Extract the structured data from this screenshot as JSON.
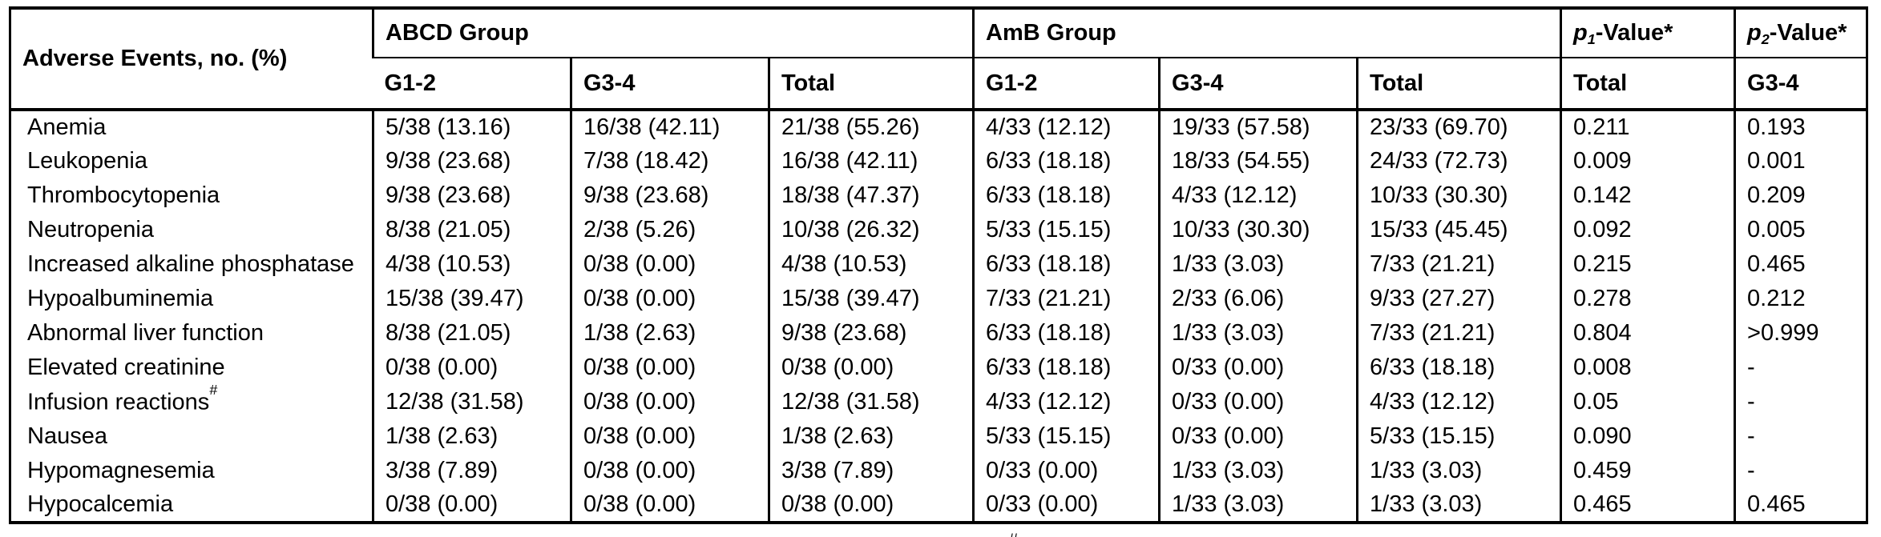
{
  "table": {
    "row_header_label": "Adverse Events, no. (%)",
    "group_headers": [
      "ABCD Group",
      "AmB Group"
    ],
    "p_headers": [
      {
        "p": "p",
        "sub": "1",
        "rest": "-Value*"
      },
      {
        "p": "p",
        "sub": "2",
        "rest": "-Value*"
      }
    ],
    "subheaders": [
      "G1-2",
      "G3-4",
      "Total",
      "G1-2",
      "G3-4",
      "Total",
      "Total",
      "G3-4"
    ],
    "rows": [
      {
        "event": "Anemia",
        "cells": [
          "5/38 (13.16)",
          "16/38 (42.11)",
          "21/38 (55.26)",
          "4/33 (12.12)",
          "19/33 (57.58)",
          "23/33 (69.70)",
          "0.211",
          "0.193"
        ]
      },
      {
        "event": "Leukopenia",
        "cells": [
          "9/38 (23.68)",
          "7/38 (18.42)",
          "16/38 (42.11)",
          "6/33 (18.18)",
          "18/33 (54.55)",
          "24/33 (72.73)",
          "0.009",
          "0.001"
        ]
      },
      {
        "event": "Thrombocytopenia",
        "cells": [
          "9/38 (23.68)",
          "9/38 (23.68)",
          "18/38 (47.37)",
          "6/33 (18.18)",
          "4/33 (12.12)",
          "10/33 (30.30)",
          "0.142",
          "0.209"
        ]
      },
      {
        "event": "Neutropenia",
        "cells": [
          "8/38 (21.05)",
          "2/38 (5.26)",
          "10/38 (26.32)",
          "5/33 (15.15)",
          "10/33 (30.30)",
          "15/33 (45.45)",
          "0.092",
          "0.005"
        ]
      },
      {
        "event": "Increased alkaline phosphatase",
        "cells": [
          "4/38 (10.53)",
          "0/38 (0.00)",
          "4/38 (10.53)",
          "6/33 (18.18)",
          "1/33 (3.03)",
          "7/33 (21.21)",
          "0.215",
          "0.465"
        ]
      },
      {
        "event": "Hypoalbuminemia",
        "cells": [
          "15/38 (39.47)",
          "0/38 (0.00)",
          "15/38 (39.47)",
          "7/33 (21.21)",
          "2/33 (6.06)",
          "9/33 (27.27)",
          "0.278",
          "0.212"
        ]
      },
      {
        "event": "Abnormal liver function",
        "cells": [
          "8/38 (21.05)",
          "1/38 (2.63)",
          "9/38 (23.68)",
          "6/33 (18.18)",
          "1/33 (3.03)",
          "7/33 (21.21)",
          "0.804",
          ">0.999"
        ]
      },
      {
        "event": "Elevated creatinine",
        "cells": [
          "0/38 (0.00)",
          "0/38 (0.00)",
          "0/38 (0.00)",
          "6/33 (18.18)",
          "0/33 (0.00)",
          "6/33 (18.18)",
          "0.008",
          "-"
        ]
      },
      {
        "event": "Infusion reactions",
        "event_sup": "#",
        "cells": [
          "12/38 (31.58)",
          "0/38 (0.00)",
          "12/38 (31.58)",
          "4/33 (12.12)",
          "0/33 (0.00)",
          "4/33 (12.12)",
          "0.05",
          "-"
        ]
      },
      {
        "event": "Nausea",
        "cells": [
          "1/38 (2.63)",
          "0/38 (0.00)",
          "1/38 (2.63)",
          "5/33 (15.15)",
          "0/33 (0.00)",
          "5/33 (15.15)",
          "0.090",
          "-"
        ]
      },
      {
        "event": "Hypomagnesemia",
        "cells": [
          "3/38 (7.89)",
          "0/38 (0.00)",
          "3/38 (7.89)",
          "0/33 (0.00)",
          "1/33 (3.03)",
          "1/33 (3.03)",
          "0.459",
          "-"
        ]
      },
      {
        "event": "Hypocalcemia",
        "cells": [
          "0/38 (0.00)",
          "0/38 (0.00)",
          "0/38 (0.00)",
          "0/33 (0.00)",
          "1/33 (3.03)",
          "1/33 (3.03)",
          "0.465",
          "0.465"
        ]
      }
    ]
  },
  "footnote_marker": "#",
  "colors": {
    "border": "#000000",
    "text": "#000000",
    "background": "#ffffff"
  }
}
